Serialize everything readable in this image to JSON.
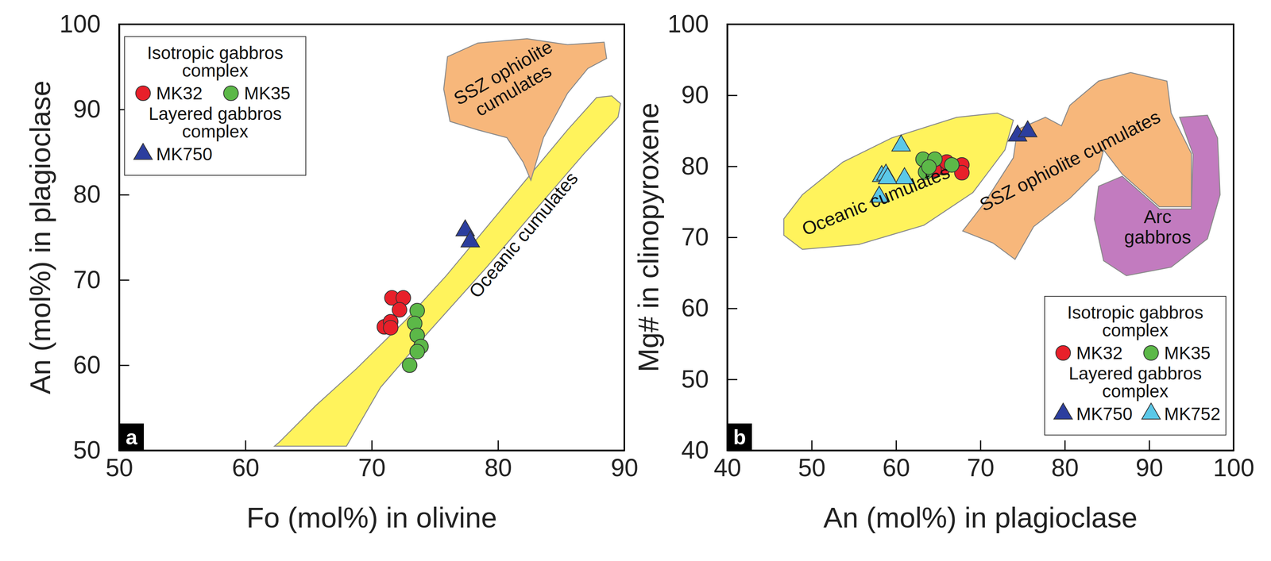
{
  "chart_data": [
    {
      "type": "scatter",
      "panel_label": "a",
      "x_label": "Fo (mol%) in olivine",
      "y_label": "An (mol%) in plagioclase",
      "xlim": [
        50,
        90
      ],
      "ylim": [
        50,
        100
      ],
      "xticks": [
        50,
        60,
        70,
        80,
        90
      ],
      "yticks": [
        50,
        60,
        70,
        80,
        90,
        100
      ],
      "legend": "upper left",
      "fields": [
        {
          "label": [
            "Oceanic cumulates"
          ],
          "color": "#fff35c",
          "label_x": 82.0,
          "label_y": 75.3,
          "x": [
            62.3,
            68.0,
            70.7,
            73.9,
            79.1,
            82.9,
            86.8,
            89.5,
            89.7,
            89.0,
            87.8,
            85.5,
            82.3,
            79.1,
            75.9,
            72.7,
            68.8,
            65.6,
            62.7
          ],
          "y": [
            50.5,
            50.5,
            57.4,
            62.9,
            71.5,
            78.1,
            84.8,
            89.1,
            90.7,
            91.6,
            91.4,
            87.6,
            81.9,
            76.2,
            70.5,
            65.3,
            59.6,
            55.3,
            51.0
          ]
        },
        {
          "label": [
            "SSZ ophiolite",
            "cumulates"
          ],
          "color": "#f7b77b",
          "label_x": 80.8,
          "label_y": 93.3,
          "x": [
            76.0,
            78.4,
            82.3,
            85.5,
            88.4,
            88.6,
            87.1,
            85.5,
            83.6,
            82.6,
            82.0,
            80.7,
            78.4,
            76.2,
            75.7
          ],
          "y": [
            96.2,
            97.8,
            98.3,
            97.6,
            97.9,
            96.0,
            94.8,
            91.9,
            86.7,
            81.7,
            83.8,
            86.7,
            87.6,
            88.6,
            92.4
          ]
        }
      ],
      "series": [
        {
          "name": "MK32",
          "group": [
            "Isotropic gabbros",
            "complex"
          ],
          "color": "#e8202a",
          "marker": "circle",
          "x": [
            71.0,
            71.5,
            71.5,
            71.6,
            72.5,
            72.2
          ],
          "y": [
            64.5,
            65.1,
            64.4,
            67.9,
            67.9,
            66.5
          ]
        },
        {
          "name": "MK35",
          "group": [
            "Isotropic gabbros",
            "complex"
          ],
          "color": "#5cb848",
          "marker": "circle",
          "x": [
            73.6,
            73.4,
            73.6,
            73.9,
            73.6,
            73.0
          ],
          "y": [
            66.4,
            64.9,
            63.5,
            62.2,
            61.6,
            60.0
          ]
        },
        {
          "name": "MK750",
          "group": [
            "Layered gabbros",
            "complex"
          ],
          "color": "#2c3e9e",
          "marker": "triangle",
          "x": [
            77.4,
            77.8
          ],
          "y": [
            75.8,
            74.5
          ]
        }
      ]
    },
    {
      "type": "scatter",
      "panel_label": "b",
      "x_label": "An (mol%) in plagioclase",
      "y_label": "Mg# in clinopyroxene",
      "xlim": [
        40,
        100
      ],
      "ylim": [
        40,
        100
      ],
      "xticks": [
        40,
        50,
        60,
        70,
        80,
        90,
        100
      ],
      "yticks": [
        40,
        50,
        60,
        70,
        80,
        90,
        100
      ],
      "legend": "lower right",
      "fields": [
        {
          "label": [
            "Oceanic cumulates"
          ],
          "color": "#fff35c",
          "label_x": 57.6,
          "label_y": 75.2,
          "x": [
            46.7,
            48.9,
            55.6,
            63.3,
            69.1,
            72.9,
            73.9,
            72.0,
            67.2,
            59.5,
            53.7,
            48.9,
            46.7
          ],
          "y": [
            70.3,
            68.3,
            69.0,
            71.7,
            76.3,
            82.3,
            86.5,
            87.5,
            86.9,
            84.0,
            80.6,
            76.0,
            72.6
          ]
        },
        {
          "label": [
            "Arc",
            "gabbros"
          ],
          "color": "#c27bbf",
          "label_x": 91.0,
          "label_y": 71.5,
          "x": [
            84.0,
            86.8,
            91.2,
            95.0,
            95.2,
            93.6,
            96.9,
            98.1,
            98.4,
            96.9,
            92.6,
            87.3,
            84.6,
            83.5
          ],
          "y": [
            77.2,
            78.6,
            74.0,
            74.0,
            81.7,
            86.9,
            87.2,
            84.0,
            76.0,
            69.8,
            65.8,
            64.6,
            66.7,
            72.6
          ]
        },
        {
          "label": [
            "SSZ ophiolite cumulates"
          ],
          "color": "#f7b77b",
          "label_x": 80.6,
          "label_y": 80.8,
          "x": [
            67.9,
            70.5,
            73.9,
            74.4,
            77.7,
            79.6,
            80.6,
            84.0,
            87.8,
            92.1,
            92.6,
            95.0,
            95.0,
            91.2,
            86.8,
            84.6,
            84.0,
            80.6,
            76.3,
            74.1,
            71.5
          ],
          "y": [
            70.9,
            74.9,
            81.2,
            85.2,
            86.9,
            85.7,
            88.6,
            92.0,
            93.2,
            92.0,
            87.5,
            81.8,
            74.3,
            74.3,
            78.9,
            82.3,
            79.5,
            75.5,
            71.5,
            66.9,
            69.2
          ]
        }
      ],
      "series": [
        {
          "name": "MK32",
          "group": [
            "Isotropic gabbros",
            "complex"
          ],
          "color": "#e8202a",
          "marker": "circle",
          "x": [
            65.0,
            65.6,
            66.0,
            67.8,
            67.8,
            64.5
          ],
          "y": [
            80.1,
            79.8,
            80.6,
            80.2,
            79.1,
            79.5
          ]
        },
        {
          "name": "MK35",
          "group": [
            "Isotropic gabbros",
            "complex"
          ],
          "color": "#5cb848",
          "marker": "circle",
          "x": [
            63.2,
            64.6,
            63.5,
            66.6,
            63.9
          ],
          "y": [
            81.0,
            81.0,
            79.2,
            80.2,
            79.9
          ]
        },
        {
          "name": "MK750",
          "group": [
            "Layered gabbros",
            "complex"
          ],
          "color": "#2c3e9e",
          "marker": "triangle",
          "x": [
            74.4,
            75.6
          ],
          "y": [
            84.3,
            84.9
          ]
        },
        {
          "name": "MK752",
          "group": [
            "Layered gabbros",
            "complex"
          ],
          "color": "#5bc8e8",
          "marker": "triangle",
          "x": [
            60.6,
            58.3,
            58.8,
            61.0,
            58.0,
            59.0
          ],
          "y": [
            82.9,
            78.6,
            78.8,
            78.3,
            75.7,
            78.3
          ]
        }
      ]
    }
  ]
}
